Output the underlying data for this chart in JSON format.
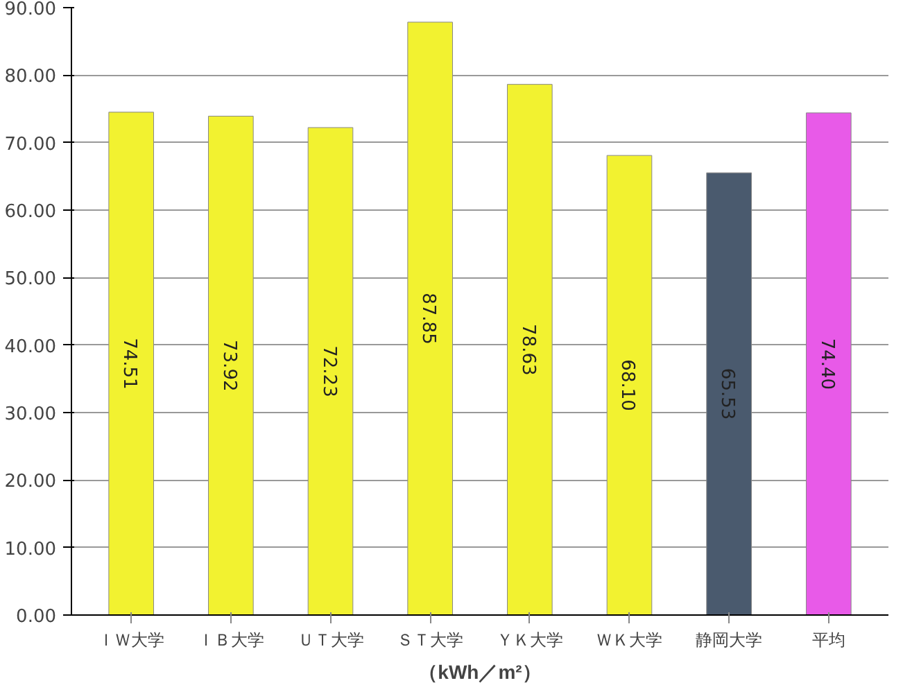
{
  "chart_data": {
    "type": "bar",
    "xlabel": "（kWh／m²）",
    "categories": [
      "ＩＷ大学",
      "ＩＢ大学",
      "ＵＴ大学",
      "ＳＴ大学",
      "ＹＫ大学",
      "ＷＫ大学",
      "静岡大学",
      "平均"
    ],
    "values": [
      74.51,
      73.92,
      72.23,
      87.85,
      78.63,
      68.1,
      65.53,
      74.4
    ],
    "value_labels": [
      "74.51",
      "73.92",
      "72.23",
      "87.85",
      "78.63",
      "68.10",
      "65.53",
      "74.40"
    ],
    "colors": [
      "#f2f230",
      "#f2f230",
      "#f2f230",
      "#f2f230",
      "#f2f230",
      "#f2f230",
      "#4a5a6e",
      "#e85ae8"
    ],
    "ylim": [
      0,
      90
    ],
    "yticks": [
      {
        "value": 0,
        "label": "0.00"
      },
      {
        "value": 10,
        "label": "10.00"
      },
      {
        "value": 20,
        "label": "20.00"
      },
      {
        "value": 30,
        "label": "30.00"
      },
      {
        "value": 40,
        "label": "40.00"
      },
      {
        "value": 50,
        "label": "50.00"
      },
      {
        "value": 60,
        "label": "60.00"
      },
      {
        "value": 70,
        "label": "70.00"
      },
      {
        "value": 80,
        "label": "80.00"
      },
      {
        "value": 90,
        "label": "90.00"
      }
    ],
    "grid": "y"
  }
}
